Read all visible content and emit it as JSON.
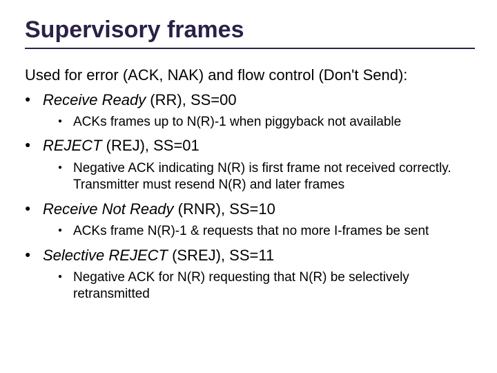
{
  "title": "Supervisory frames",
  "intro": "Used for error (ACK, NAK) and flow control (Don't Send):",
  "items": [
    {
      "label_italic": "Receive Ready",
      "label_rest": " (RR), SS=00",
      "sub": [
        "ACKs frames up to N(R)-1 when piggyback not available"
      ]
    },
    {
      "label_italic": "REJECT",
      "label_rest": " (REJ), SS=01",
      "sub": [
        "Negative ACK indicating N(R) is first frame not received correctly.  Transmitter must resend N(R) and later frames"
      ]
    },
    {
      "label_italic": "Receive Not Ready",
      "label_rest": " (RNR), SS=10",
      "sub": [
        "ACKs frame N(R)-1 & requests that no more I-frames be sent"
      ]
    },
    {
      "label_italic": "Selective REJECT",
      "label_rest": " (SREJ), SS=11",
      "sub": [
        "Negative ACK for N(R) requesting that N(R) be selectively retransmitted"
      ]
    }
  ],
  "colors": {
    "title": "#2b2147",
    "text": "#000000",
    "background": "#ffffff"
  }
}
